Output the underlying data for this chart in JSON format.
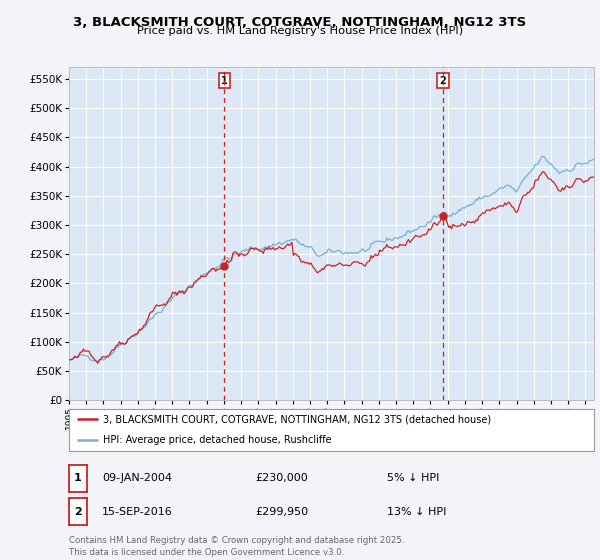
{
  "title_line1": "3, BLACKSMITH COURT, COTGRAVE, NOTTINGHAM, NG12 3TS",
  "title_line2": "Price paid vs. HM Land Registry's House Price Index (HPI)",
  "ylim": [
    0,
    570000
  ],
  "xlim_start": 1995.0,
  "xlim_end": 2025.5,
  "background_color": "#f2f4f8",
  "plot_bg_color": "#dce8f5",
  "grid_color": "#ffffff",
  "hpi_color": "#7aadd4",
  "price_color": "#cc2222",
  "marker1_date": 2004.03,
  "marker1_price": 230000,
  "marker2_date": 2016.71,
  "marker2_price": 299950,
  "legend_line1": "3, BLACKSMITH COURT, COTGRAVE, NOTTINGHAM, NG12 3TS (detached house)",
  "legend_line2": "HPI: Average price, detached house, Rushcliffe",
  "footer": "Contains HM Land Registry data © Crown copyright and database right 2025.\nThis data is licensed under the Open Government Licence v3.0.",
  "table_entries": [
    {
      "num": "1",
      "date": "09-JAN-2004",
      "price": "£230,000",
      "note": "5% ↓ HPI"
    },
    {
      "num": "2",
      "date": "15-SEP-2016",
      "price": "£299,950",
      "note": "13% ↓ HPI"
    }
  ]
}
